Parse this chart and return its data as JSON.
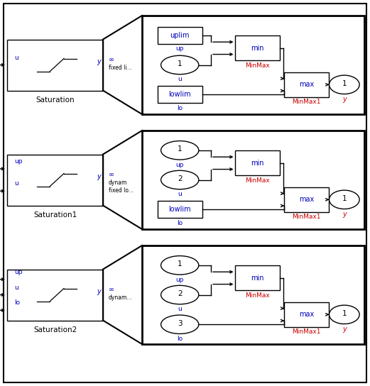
{
  "bg": "#ffffff",
  "lc": "#000000",
  "blue": "#0000bb",
  "red": "#cc0000",
  "fig_w": 5.21,
  "fig_h": 5.44,
  "dpi": 100,
  "panels": [
    {
      "title": "Saturation",
      "inputs_left": [
        "u"
      ],
      "note_line1": "∞",
      "note_line2": "fixed li...",
      "in_elements": [
        {
          "type": "rect",
          "text": "uplim",
          "sublabel": "up"
        },
        {
          "type": "oval",
          "text": "1",
          "sublabel": "u"
        },
        {
          "type": "rect",
          "text": "lowlim",
          "sublabel": "lo"
        }
      ]
    },
    {
      "title": "Saturation1",
      "inputs_left": [
        "up",
        "u"
      ],
      "note_line1": "∞",
      "note_line2": "dynam\nfixed lo...",
      "in_elements": [
        {
          "type": "oval",
          "text": "1",
          "sublabel": "up"
        },
        {
          "type": "oval",
          "text": "2",
          "sublabel": "u"
        },
        {
          "type": "rect",
          "text": "lowlim",
          "sublabel": "lo"
        }
      ]
    },
    {
      "title": "Saturation2",
      "inputs_left": [
        "up",
        "u",
        "lo"
      ],
      "note_line1": "∞",
      "note_line2": "dynam...",
      "in_elements": [
        {
          "type": "oval",
          "text": "1",
          "sublabel": "up"
        },
        {
          "type": "oval",
          "text": "2",
          "sublabel": "u"
        },
        {
          "type": "oval",
          "text": "3",
          "sublabel": "lo"
        }
      ]
    }
  ]
}
